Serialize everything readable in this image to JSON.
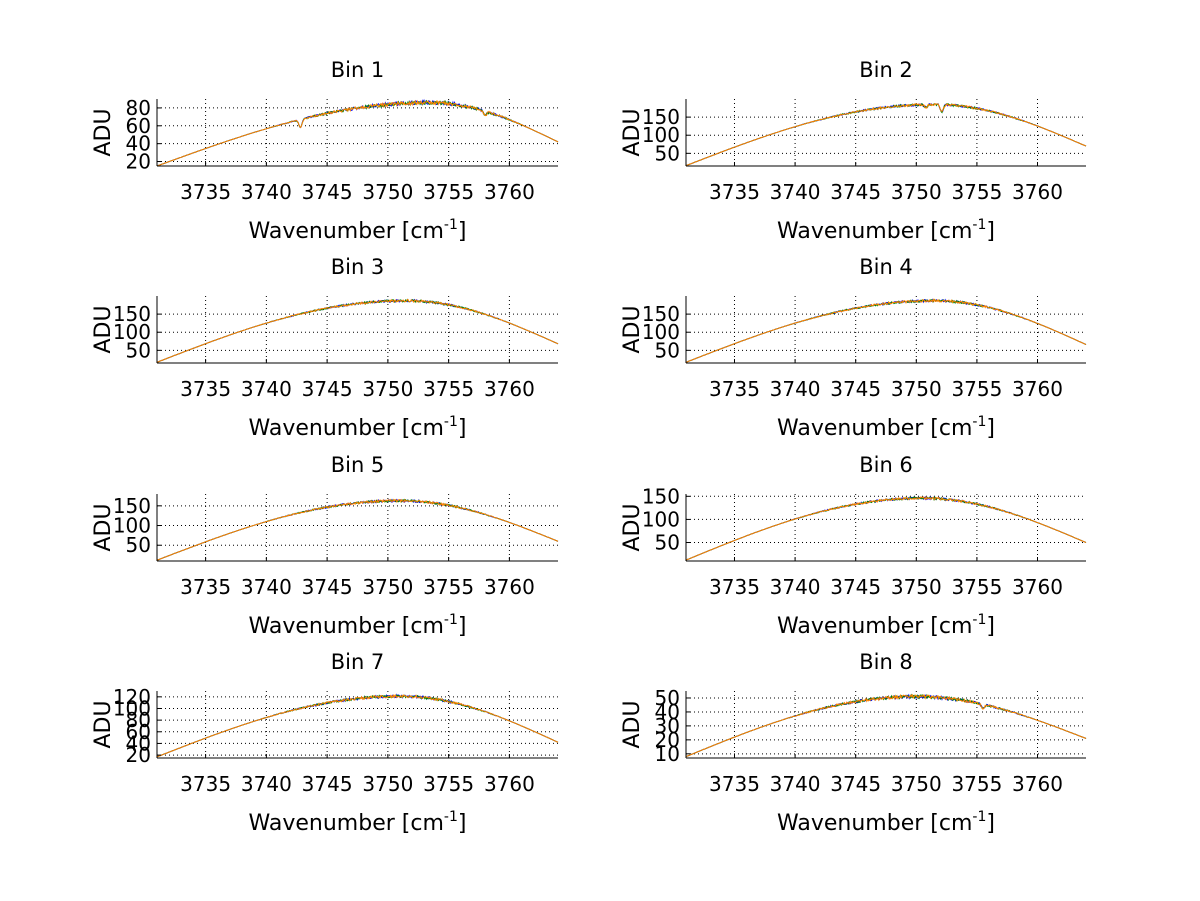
{
  "figure": {
    "background": "#ffffff",
    "series_colors": [
      "#0000ff",
      "#008000",
      "#ff0000",
      "#00bfbf",
      "#bf00bf",
      "#bfbf00",
      "#ff8000"
    ]
  },
  "chart_data": [
    {
      "type": "line",
      "title": "Bin 1",
      "xlabel_main": "Wavenumber [cm",
      "xlabel_sup": "-1",
      "xlabel_end": "]",
      "ylabel": "ADU",
      "xlim": [
        3731,
        3764
      ],
      "ylim": [
        15,
        90
      ],
      "xticks": [
        3735,
        3740,
        3745,
        3750,
        3755,
        3760
      ],
      "yticks": [
        20,
        40,
        60,
        80
      ],
      "grid": true,
      "curve": {
        "peak_x": 3753.5,
        "peak_y": 86,
        "left_y": 15,
        "right_y": 42,
        "noise": 2.5,
        "dips": [
          [
            3742.8,
            9
          ],
          [
            3758,
            5
          ]
        ]
      },
      "series_count": 3
    },
    {
      "type": "line",
      "title": "Bin 2",
      "xlabel_main": "Wavenumber [cm",
      "xlabel_sup": "-1",
      "xlabel_end": "]",
      "ylabel": "ADU",
      "xlim": [
        3731,
        3764
      ],
      "ylim": [
        15,
        200
      ],
      "xticks": [
        3735,
        3740,
        3745,
        3750,
        3755,
        3760
      ],
      "yticks": [
        50,
        100,
        150
      ],
      "grid": true,
      "curve": {
        "peak_x": 3751.5,
        "peak_y": 185,
        "left_y": 16,
        "right_y": 70,
        "noise": 4,
        "dips": [
          [
            3752.1,
            20
          ],
          [
            3750.8,
            8
          ]
        ]
      },
      "series_count": 3
    },
    {
      "type": "line",
      "title": "Bin 3",
      "xlabel_main": "Wavenumber [cm",
      "xlabel_sup": "-1",
      "xlabel_end": "]",
      "ylabel": "ADU",
      "xlim": [
        3731,
        3764
      ],
      "ylim": [
        15,
        200
      ],
      "xticks": [
        3735,
        3740,
        3745,
        3750,
        3755,
        3760
      ],
      "yticks": [
        50,
        100,
        150
      ],
      "grid": true,
      "curve": {
        "peak_x": 3751.5,
        "peak_y": 187,
        "left_y": 17,
        "right_y": 68,
        "noise": 4,
        "dips": []
      },
      "series_count": 3
    },
    {
      "type": "line",
      "title": "Bin 4",
      "xlabel_main": "Wavenumber [cm",
      "xlabel_sup": "-1",
      "xlabel_end": "]",
      "ylabel": "ADU",
      "xlim": [
        3731,
        3764
      ],
      "ylim": [
        15,
        200
      ],
      "xticks": [
        3735,
        3740,
        3745,
        3750,
        3755,
        3760
      ],
      "yticks": [
        50,
        100,
        150
      ],
      "grid": true,
      "curve": {
        "peak_x": 3751.5,
        "peak_y": 187,
        "left_y": 17,
        "right_y": 66,
        "noise": 4,
        "dips": []
      },
      "series_count": 3
    },
    {
      "type": "line",
      "title": "Bin 5",
      "xlabel_main": "Wavenumber [cm",
      "xlabel_sup": "-1",
      "xlabel_end": "]",
      "ylabel": "ADU",
      "xlim": [
        3731,
        3764
      ],
      "ylim": [
        10,
        180
      ],
      "xticks": [
        3735,
        3740,
        3745,
        3750,
        3755,
        3760
      ],
      "yticks": [
        50,
        100,
        150
      ],
      "grid": true,
      "curve": {
        "peak_x": 3751,
        "peak_y": 163,
        "left_y": 12,
        "right_y": 60,
        "noise": 4,
        "dips": []
      },
      "series_count": 3
    },
    {
      "type": "line",
      "title": "Bin 6",
      "xlabel_main": "Wavenumber [cm",
      "xlabel_sup": "-1",
      "xlabel_end": "]",
      "ylabel": "ADU",
      "xlim": [
        3731,
        3764
      ],
      "ylim": [
        10,
        155
      ],
      "xticks": [
        3735,
        3740,
        3745,
        3750,
        3755,
        3760
      ],
      "yticks": [
        50,
        100,
        150
      ],
      "grid": true,
      "curve": {
        "peak_x": 3750.5,
        "peak_y": 146,
        "left_y": 12,
        "right_y": 50,
        "noise": 3,
        "dips": []
      },
      "series_count": 3
    },
    {
      "type": "line",
      "title": "Bin 7",
      "xlabel_main": "Wavenumber [cm",
      "xlabel_sup": "-1",
      "xlabel_end": "]",
      "ylabel": "ADU",
      "xlim": [
        3731,
        3764
      ],
      "ylim": [
        15,
        130
      ],
      "xticks": [
        3735,
        3740,
        3745,
        3750,
        3755,
        3760
      ],
      "yticks": [
        20,
        40,
        60,
        80,
        100,
        120
      ],
      "ytick_labels": [
        "20",
        "40",
        "60",
        "80",
        "100",
        "120"
      ],
      "grid": true,
      "curve": {
        "peak_x": 3751,
        "peak_y": 121,
        "left_y": 17,
        "right_y": 42,
        "noise": 3,
        "dips": []
      },
      "series_count": 3
    },
    {
      "type": "line",
      "title": "Bin 8",
      "xlabel_main": "Wavenumber [cm",
      "xlabel_sup": "-1",
      "xlabel_end": "]",
      "ylabel": "ADU",
      "xlim": [
        3731,
        3764
      ],
      "ylim": [
        7,
        55
      ],
      "xticks": [
        3735,
        3740,
        3745,
        3750,
        3755,
        3760
      ],
      "yticks": [
        10,
        20,
        30,
        40,
        50
      ],
      "grid": true,
      "curve": {
        "peak_x": 3750,
        "peak_y": 51,
        "left_y": 8,
        "right_y": 21,
        "noise": 1.5,
        "dips": [
          [
            3755.5,
            3
          ]
        ]
      },
      "series_count": 3
    }
  ]
}
